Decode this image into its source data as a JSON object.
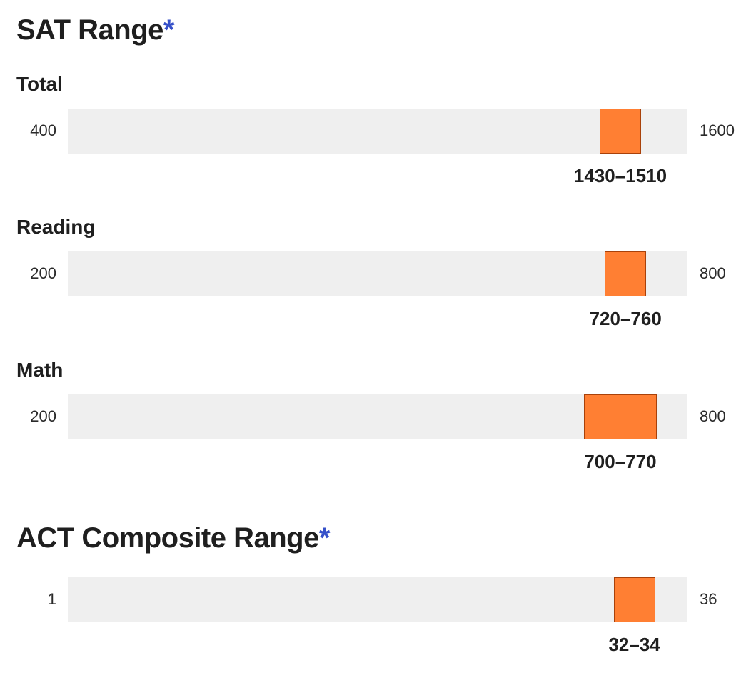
{
  "sat": {
    "title": "SAT Range",
    "asterisk": "*"
  },
  "act": {
    "title": "ACT Composite Range",
    "asterisk": "*"
  },
  "chart_data": [
    {
      "type": "range",
      "group": "SAT Range",
      "label": "Total",
      "min": 400,
      "max": 1600,
      "min_label": "400",
      "max_label": "1600",
      "low": 1430,
      "high": 1510,
      "range_label": "1430–1510",
      "fill_color": "#ff7f33",
      "track_color": "#efefef"
    },
    {
      "type": "range",
      "group": "SAT Range",
      "label": "Reading",
      "min": 200,
      "max": 800,
      "min_label": "200",
      "max_label": "800",
      "low": 720,
      "high": 760,
      "range_label": "720–760",
      "fill_color": "#ff7f33",
      "track_color": "#efefef"
    },
    {
      "type": "range",
      "group": "SAT Range",
      "label": "Math",
      "min": 200,
      "max": 800,
      "min_label": "200",
      "max_label": "800",
      "low": 700,
      "high": 770,
      "range_label": "700–770",
      "fill_color": "#ff7f33",
      "track_color": "#efefef"
    },
    {
      "type": "range",
      "group": "ACT Composite Range",
      "label": "",
      "min": 1,
      "max": 36,
      "min_label": "1",
      "max_label": "36",
      "low": 32,
      "high": 34,
      "range_label": "32–34",
      "fill_color": "#ff7f33",
      "track_color": "#efefef"
    }
  ]
}
